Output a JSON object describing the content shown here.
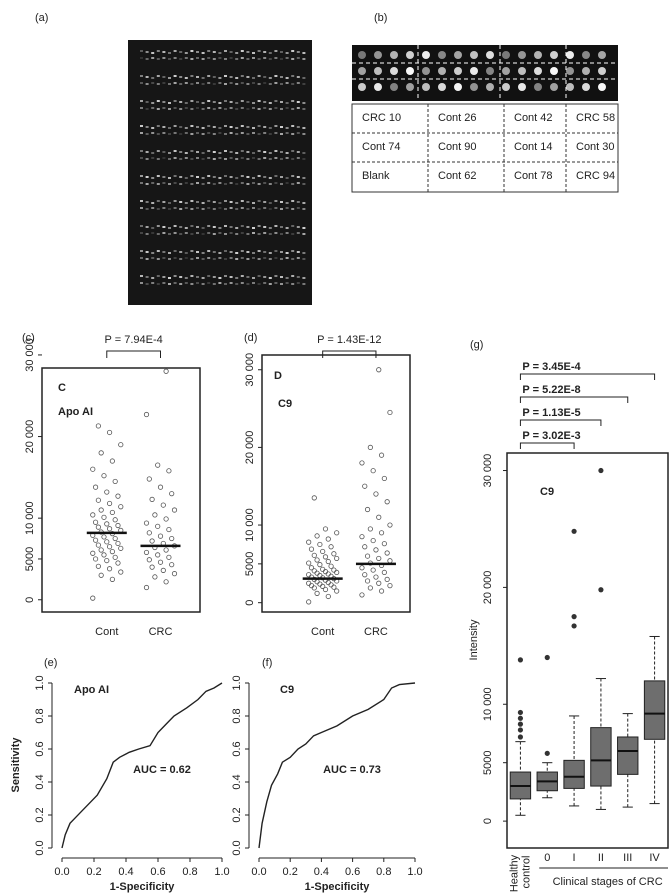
{
  "panel_a": {
    "label": "(a)"
  },
  "panel_b": {
    "label": "(b)",
    "table": [
      [
        "CRC 10",
        "Cont 26",
        "Cont 42",
        "CRC 58"
      ],
      [
        "Cont 74",
        "Cont 90",
        "Cont 14",
        "Cont 30"
      ],
      [
        "Blank",
        "Cont 62",
        "Cont 78",
        "CRC 94"
      ]
    ]
  },
  "chart_data": [
    {
      "type": "strip",
      "label": "(c)",
      "letter": "C",
      "annotation": "Apo AI",
      "p_value": "P = 7.94E-4",
      "categories": [
        "Cont",
        "CRC"
      ],
      "values": [
        [
          200,
          2500,
          3000,
          3400,
          3800,
          4100,
          4500,
          4800,
          5000,
          5200,
          5500,
          5700,
          5900,
          6100,
          6300,
          6500,
          6700,
          6900,
          7100,
          7300,
          7500,
          7700,
          7900,
          8100,
          8300,
          8500,
          8700,
          8900,
          9100,
          9300,
          9500,
          9800,
          10100,
          10400,
          10700,
          11000,
          11400,
          11800,
          12200,
          12700,
          13200,
          13800,
          14500,
          15200,
          16000,
          17000,
          18000,
          19000,
          20500,
          21300
        ],
        [
          1500,
          2200,
          2800,
          3200,
          3600,
          4000,
          4300,
          4600,
          4900,
          5200,
          5500,
          5800,
          6100,
          6400,
          6600,
          6900,
          7200,
          7500,
          7800,
          8200,
          8600,
          9000,
          9400,
          9900,
          10400,
          11000,
          11600,
          12300,
          13000,
          13800,
          14800,
          15800,
          16500,
          22700,
          28000
        ]
      ],
      "medians": [
        8200,
        6600
      ],
      "ylim": [
        -1500,
        28400
      ],
      "yticks": [
        0,
        5000,
        {
          "value": 10000,
          "label": "10 000"
        },
        {
          "value": 20000,
          "label": "20 000"
        },
        {
          "value": 30000,
          "label": "30 000"
        }
      ]
    },
    {
      "type": "strip",
      "label": "(d)",
      "letter": "D",
      "annotation": "C9",
      "p_value": "P = 1.43E-12",
      "categories": [
        "Cont",
        "CRC"
      ],
      "values": [
        [
          100,
          800,
          1200,
          1500,
          1700,
          1900,
          2000,
          2100,
          2200,
          2300,
          2400,
          2500,
          2600,
          2700,
          2800,
          2900,
          3000,
          3100,
          3200,
          3300,
          3400,
          3500,
          3600,
          3700,
          3800,
          3900,
          4000,
          4100,
          4200,
          4300,
          4500,
          4700,
          4900,
          5100,
          5300,
          5500,
          5700,
          5900,
          6100,
          6300,
          6600,
          6900,
          7200,
          7500,
          7800,
          8200,
          8600,
          9000,
          9500,
          13500
        ],
        [
          1000,
          1500,
          1900,
          2200,
          2500,
          2800,
          3000,
          3300,
          3600,
          3900,
          4200,
          4500,
          4800,
          5100,
          5400,
          5700,
          6000,
          6400,
          6800,
          7200,
          7600,
          8000,
          8500,
          9000,
          9500,
          10000,
          11000,
          12000,
          13000,
          14000,
          15000,
          16000,
          17000,
          18000,
          19000,
          20000,
          24500,
          30000
        ]
      ],
      "medians": [
        3100,
        5000
      ],
      "ylim": [
        -1200,
        31900
      ],
      "yticks": [
        0,
        5000,
        {
          "value": 10000,
          "label": "10 000"
        },
        {
          "value": 20000,
          "label": "20 000"
        },
        {
          "value": 30000,
          "label": "30 000"
        }
      ]
    },
    {
      "type": "line",
      "label": "(e)",
      "annotation": "Apo AI",
      "auc": "AUC = 0.62",
      "xlabel": "1-Specificity",
      "ylabel": "Sensitivity",
      "x": [
        0,
        0.02,
        0.05,
        0.08,
        0.12,
        0.18,
        0.22,
        0.28,
        0.32,
        0.36,
        0.42,
        0.48,
        0.55,
        0.6,
        0.65,
        0.7,
        0.78,
        0.85,
        0.9,
        0.95,
        1.0
      ],
      "y": [
        0,
        0.08,
        0.15,
        0.18,
        0.22,
        0.28,
        0.32,
        0.42,
        0.52,
        0.55,
        0.58,
        0.6,
        0.62,
        0.7,
        0.75,
        0.8,
        0.85,
        0.9,
        0.95,
        0.97,
        1.0
      ],
      "xlim": [
        0,
        1
      ],
      "ylim": [
        0,
        1
      ],
      "xticks": [
        {
          "value": 0,
          "label": "0.0"
        },
        0.2,
        0.4,
        0.6,
        0.8,
        {
          "value": 1,
          "label": "1.0"
        }
      ],
      "yticks": [
        {
          "value": 0,
          "label": "0.0"
        },
        0.2,
        0.4,
        0.6,
        0.8,
        {
          "value": 1,
          "label": "1.0"
        }
      ]
    },
    {
      "type": "line",
      "label": "(f)",
      "annotation": "C9",
      "auc": "AUC = 0.73",
      "xlabel": "1-Specificity",
      "x": [
        0,
        0.02,
        0.05,
        0.08,
        0.12,
        0.15,
        0.2,
        0.25,
        0.3,
        0.35,
        0.4,
        0.5,
        0.6,
        0.7,
        0.8,
        0.85,
        0.9,
        1.0
      ],
      "y": [
        0,
        0.15,
        0.28,
        0.38,
        0.45,
        0.52,
        0.55,
        0.6,
        0.63,
        0.68,
        0.7,
        0.74,
        0.8,
        0.84,
        0.9,
        0.97,
        0.99,
        1.0
      ],
      "xlim": [
        0,
        1
      ],
      "ylim": [
        0,
        1
      ],
      "xticks": [
        {
          "value": 0,
          "label": "0.0"
        },
        0.2,
        0.4,
        0.6,
        0.8,
        {
          "value": 1,
          "label": "1.0"
        }
      ],
      "yticks": [
        {
          "value": 0,
          "label": "0.0"
        },
        0.2,
        0.4,
        0.6,
        0.8,
        {
          "value": 1,
          "label": "1.0"
        }
      ]
    },
    {
      "type": "box",
      "label": "(g)",
      "annotation": "C9",
      "ylabel": "Intensity",
      "group_label": "Clinical stages of CRC",
      "p_values": [
        "P = 3.02E-3",
        "P = 1.13E-5",
        "P = 5.22E-8",
        "P = 3.45E-4"
      ],
      "categories": [
        "Healthy control",
        "0",
        "I",
        "II",
        "III",
        "IV"
      ],
      "boxes": [
        {
          "low": 500,
          "q1": 1900,
          "median": 3000,
          "q3": 4200,
          "high": 6800,
          "outliers": [
            7200,
            7800,
            8300,
            8800,
            9300,
            13800
          ]
        },
        {
          "low": 2000,
          "q1": 2600,
          "median": 3400,
          "q3": 4200,
          "high": 5000,
          "outliers": [
            5800,
            14000
          ]
        },
        {
          "low": 1300,
          "q1": 2800,
          "median": 3800,
          "q3": 5200,
          "high": 9000,
          "outliers": [
            16700,
            17500,
            24800
          ]
        },
        {
          "low": 1000,
          "q1": 3000,
          "median": 5200,
          "q3": 8000,
          "high": 12200,
          "outliers": [
            19800,
            30000
          ]
        },
        {
          "low": 1200,
          "q1": 4000,
          "median": 6000,
          "q3": 7200,
          "high": 9200,
          "outliers": []
        },
        {
          "low": 1500,
          "q1": 7000,
          "median": 9200,
          "q3": 12000,
          "high": 15800,
          "outliers": []
        }
      ],
      "ylim": [
        -2300,
        31500
      ],
      "yticks": [
        0,
        5000,
        {
          "value": 10000,
          "label": "10 000"
        },
        {
          "value": 20000,
          "label": "20 000"
        },
        {
          "value": 30000,
          "label": "30 000"
        }
      ]
    }
  ]
}
